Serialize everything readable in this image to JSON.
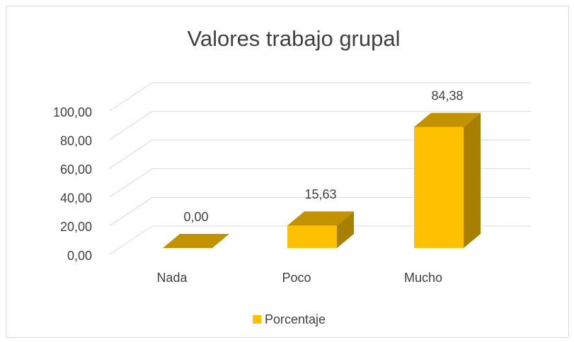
{
  "chart_data": {
    "type": "bar3d",
    "title": "Valores trabajo grupal",
    "categories": [
      "Nada",
      "Poco",
      "Mucho"
    ],
    "series": [
      {
        "name": "Porcentaje",
        "color": "#ffc000",
        "values": [
          0,
          15.63,
          84.38
        ],
        "value_labels": [
          "0,00",
          "15,63",
          "84,38"
        ]
      }
    ],
    "ylim": [
      0,
      100
    ],
    "yticks": [
      {
        "value": 0,
        "label": "0,00"
      },
      {
        "value": 20,
        "label": "20,00"
      },
      {
        "value": 40,
        "label": "40,00"
      },
      {
        "value": 60,
        "label": "60,00"
      },
      {
        "value": 80,
        "label": "80,00"
      },
      {
        "value": 100,
        "label": "100,00"
      }
    ],
    "grid": true,
    "legend": "bottom"
  }
}
